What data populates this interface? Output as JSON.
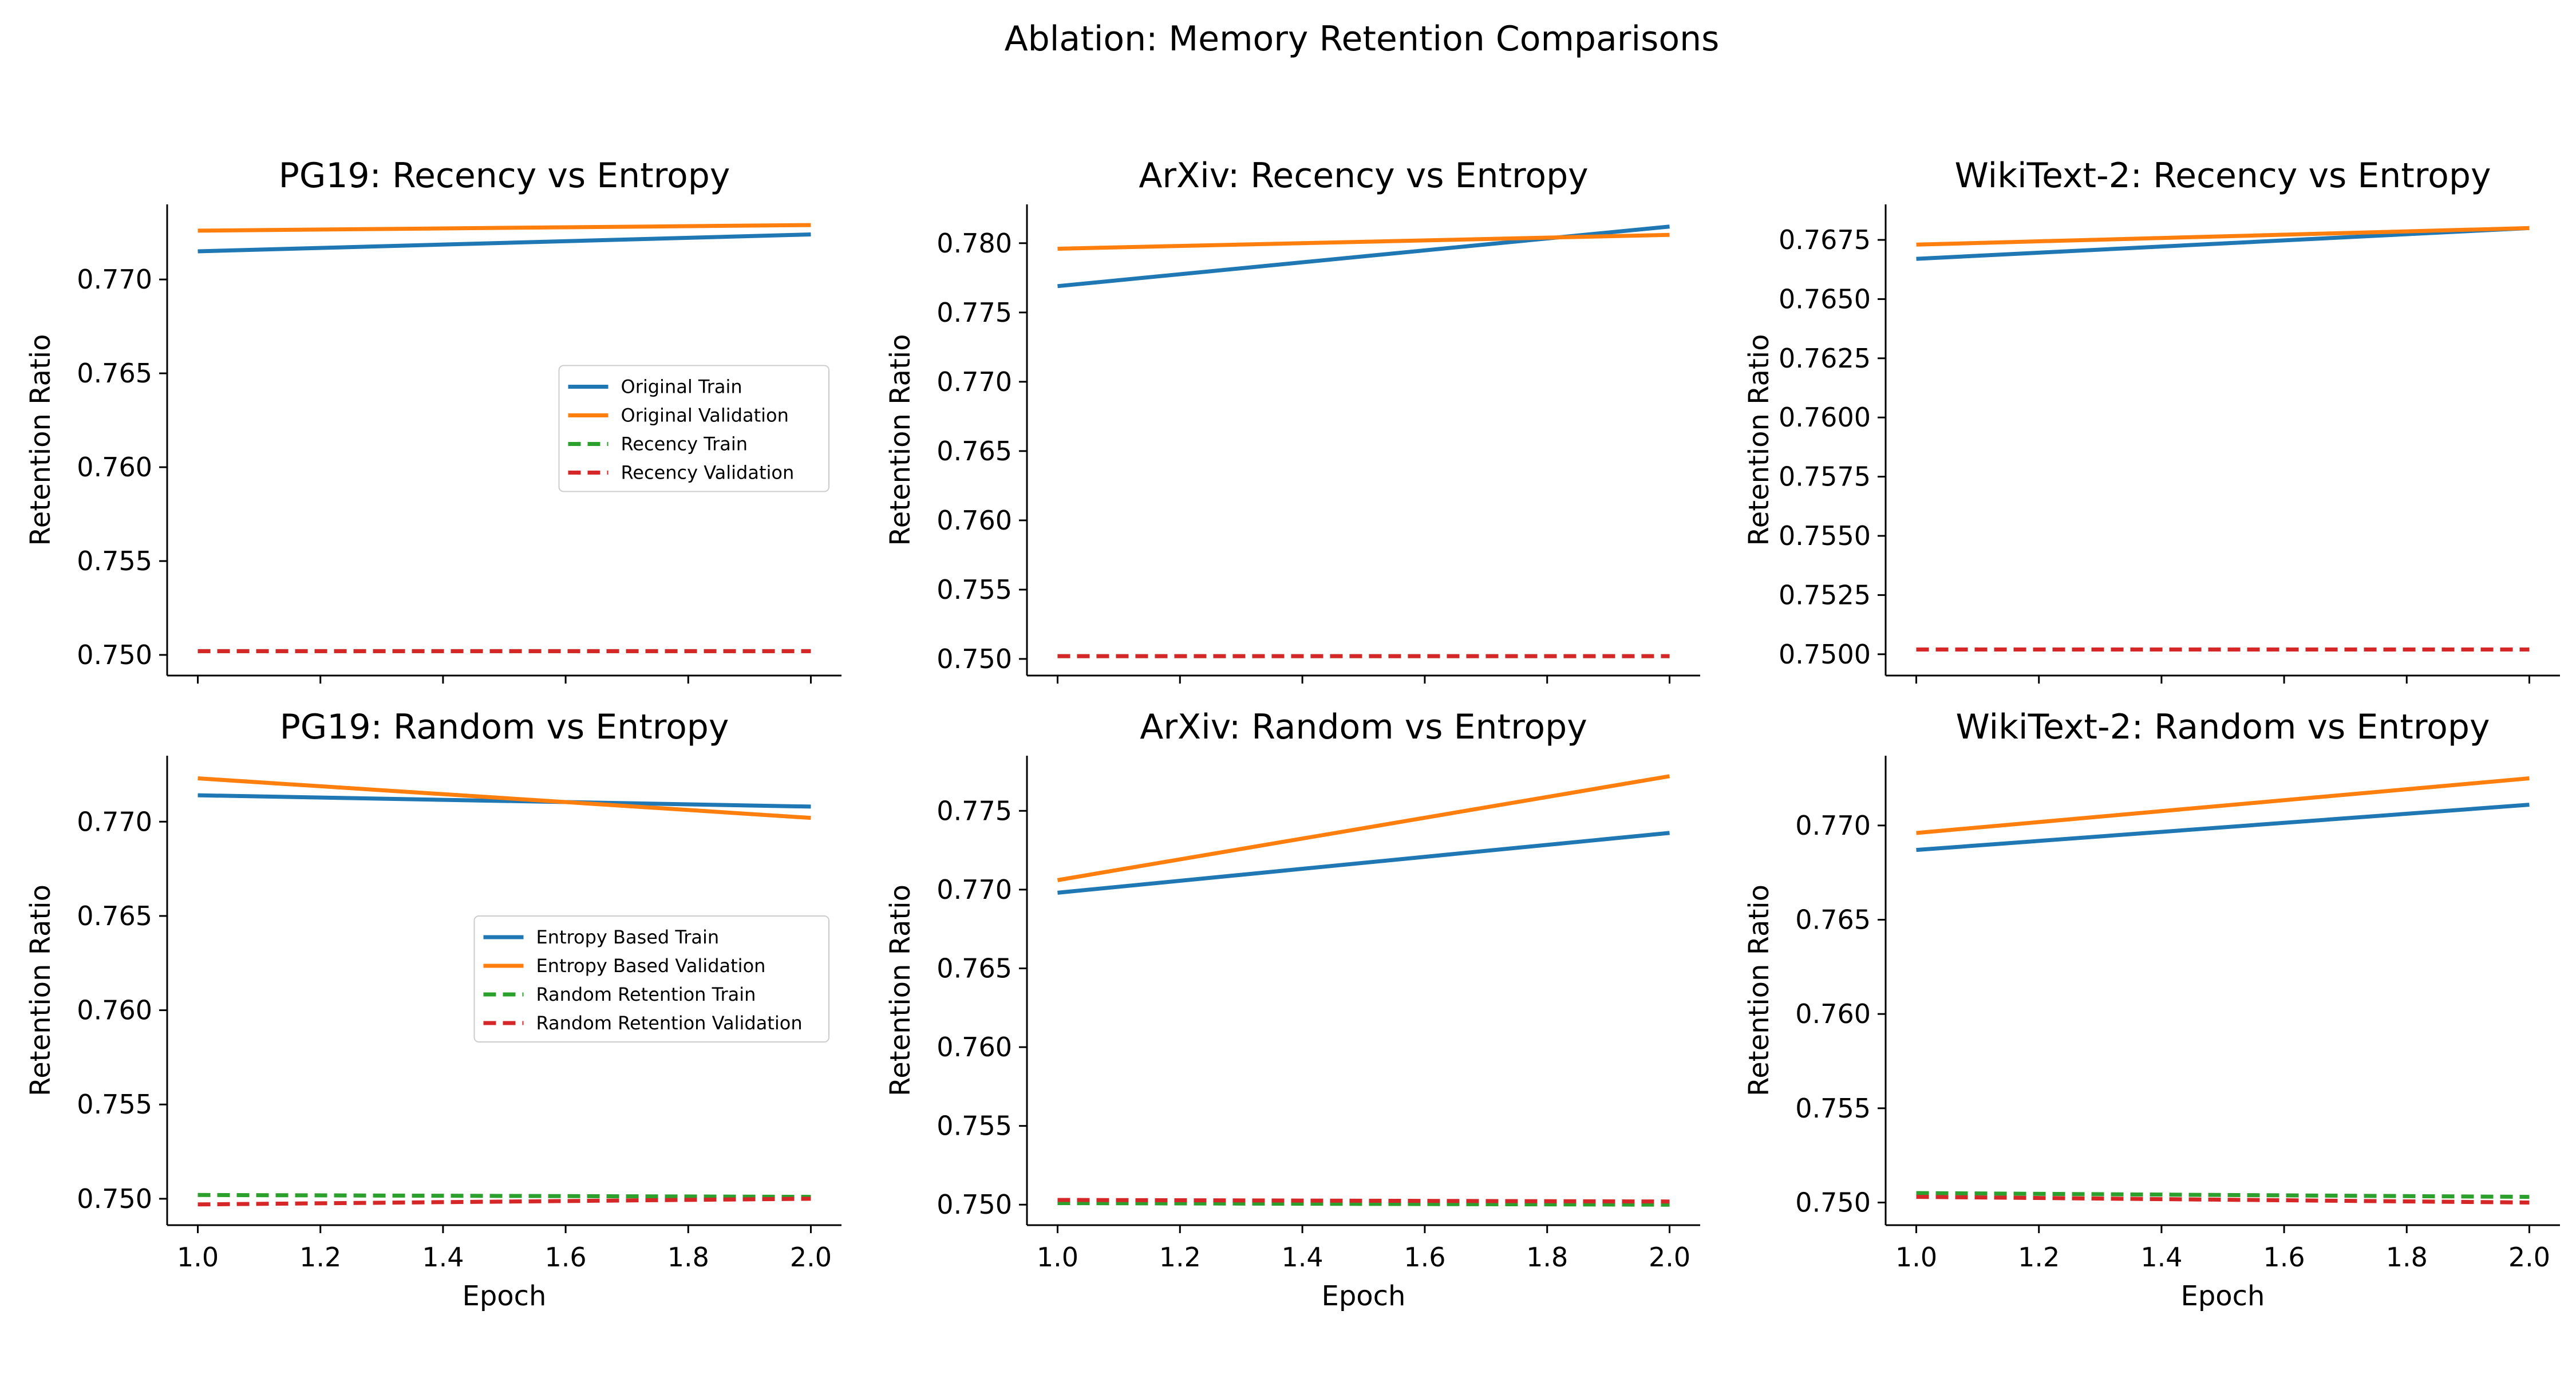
{
  "title": "Ablation: Memory Retention Comparisons",
  "colors": {
    "blue": "#1f77b4",
    "orange": "#ff7f0e",
    "green": "#2ca02c",
    "red": "#d62728",
    "axis": "#000000",
    "background": "#ffffff"
  },
  "chart_data": [
    {
      "type": "line",
      "title": "PG19: Recency vs Entropy",
      "xlabel": "",
      "ylabel": "Retention Ratio",
      "x": [
        1.0,
        2.0
      ],
      "xlim": [
        0.95,
        2.05
      ],
      "ylim": [
        0.7489,
        0.774
      ],
      "xticks": [
        "1.0",
        "1.2",
        "1.4",
        "1.6",
        "1.8",
        "2.0"
      ],
      "xtick_values": [
        1.0,
        1.2,
        1.4,
        1.6,
        1.8,
        2.0
      ],
      "yticks": [
        "0.750",
        "0.755",
        "0.760",
        "0.765",
        "0.770"
      ],
      "ytick_values": [
        0.75,
        0.755,
        0.76,
        0.765,
        0.77
      ],
      "show_xticklabels": false,
      "legend": "center-right",
      "grid": false,
      "series": [
        {
          "name": "Original Train",
          "color": "blue",
          "dash": false,
          "values": [
            0.7715,
            0.7724
          ]
        },
        {
          "name": "Original Validation",
          "color": "orange",
          "dash": false,
          "values": [
            0.7726,
            0.7729
          ]
        },
        {
          "name": "Recency Train",
          "color": "green",
          "dash": true,
          "values": [
            0.7502,
            0.7502
          ]
        },
        {
          "name": "Recency Validation",
          "color": "red",
          "dash": true,
          "values": [
            0.7502,
            0.7502
          ]
        }
      ]
    },
    {
      "type": "line",
      "title": "ArXiv: Recency vs Entropy",
      "xlabel": "",
      "ylabel": "Retention Ratio",
      "x": [
        1.0,
        2.0
      ],
      "xlim": [
        0.95,
        2.05
      ],
      "ylim": [
        0.7488,
        0.7828
      ],
      "xticks": [
        "1.0",
        "1.2",
        "1.4",
        "1.6",
        "1.8",
        "2.0"
      ],
      "xtick_values": [
        1.0,
        1.2,
        1.4,
        1.6,
        1.8,
        2.0
      ],
      "yticks": [
        "0.750",
        "0.755",
        "0.760",
        "0.765",
        "0.770",
        "0.775",
        "0.780"
      ],
      "ytick_values": [
        0.75,
        0.755,
        0.76,
        0.765,
        0.77,
        0.775,
        0.78
      ],
      "show_xticklabels": false,
      "legend": "none",
      "grid": false,
      "series": [
        {
          "name": "Original Train",
          "color": "blue",
          "dash": false,
          "values": [
            0.7769,
            0.7812
          ]
        },
        {
          "name": "Original Validation",
          "color": "orange",
          "dash": false,
          "values": [
            0.7796,
            0.7806
          ]
        },
        {
          "name": "Recency Train",
          "color": "green",
          "dash": true,
          "values": [
            0.7502,
            0.7502
          ]
        },
        {
          "name": "Recency Validation",
          "color": "red",
          "dash": true,
          "values": [
            0.7502,
            0.7502
          ]
        }
      ]
    },
    {
      "type": "line",
      "title": "WikiText-2: Recency vs Entropy",
      "xlabel": "",
      "ylabel": "Retention Ratio",
      "x": [
        1.0,
        2.0
      ],
      "xlim": [
        0.95,
        2.05
      ],
      "ylim": [
        0.7491,
        0.769
      ],
      "xticks": [
        "1.0",
        "1.2",
        "1.4",
        "1.6",
        "1.8",
        "2.0"
      ],
      "xtick_values": [
        1.0,
        1.2,
        1.4,
        1.6,
        1.8,
        2.0
      ],
      "yticks": [
        "0.7500",
        "0.7525",
        "0.7550",
        "0.7575",
        "0.7600",
        "0.7625",
        "0.7650",
        "0.7675"
      ],
      "ytick_values": [
        0.75,
        0.7525,
        0.755,
        0.7575,
        0.76,
        0.7625,
        0.765,
        0.7675
      ],
      "show_xticklabels": false,
      "legend": "none",
      "grid": false,
      "series": [
        {
          "name": "Original Train",
          "color": "blue",
          "dash": false,
          "values": [
            0.7667,
            0.768
          ]
        },
        {
          "name": "Original Validation",
          "color": "orange",
          "dash": false,
          "values": [
            0.7673,
            0.768
          ]
        },
        {
          "name": "Recency Train",
          "color": "green",
          "dash": true,
          "values": [
            0.7502,
            0.7502
          ]
        },
        {
          "name": "Recency Validation",
          "color": "red",
          "dash": true,
          "values": [
            0.7502,
            0.7502
          ]
        }
      ]
    },
    {
      "type": "line",
      "title": "PG19: Random vs Entropy",
      "xlabel": "Epoch",
      "ylabel": "Retention Ratio",
      "x": [
        1.0,
        2.0
      ],
      "xlim": [
        0.95,
        2.05
      ],
      "ylim": [
        0.7486,
        0.7735
      ],
      "xticks": [
        "1.0",
        "1.2",
        "1.4",
        "1.6",
        "1.8",
        "2.0"
      ],
      "xtick_values": [
        1.0,
        1.2,
        1.4,
        1.6,
        1.8,
        2.0
      ],
      "yticks": [
        "0.750",
        "0.755",
        "0.760",
        "0.765",
        "0.770"
      ],
      "ytick_values": [
        0.75,
        0.755,
        0.76,
        0.765,
        0.77
      ],
      "show_xticklabels": true,
      "legend": "center-right",
      "grid": false,
      "series": [
        {
          "name": "Entropy Based Train",
          "color": "blue",
          "dash": false,
          "values": [
            0.7714,
            0.7708
          ]
        },
        {
          "name": "Entropy Based Validation",
          "color": "orange",
          "dash": false,
          "values": [
            0.7723,
            0.7702
          ]
        },
        {
          "name": "Random Retention Train",
          "color": "green",
          "dash": true,
          "values": [
            0.7502,
            0.7501
          ]
        },
        {
          "name": "Random Retention Validation",
          "color": "red",
          "dash": true,
          "values": [
            0.7497,
            0.75
          ]
        }
      ]
    },
    {
      "type": "line",
      "title": "ArXiv: Random vs Entropy",
      "xlabel": "Epoch",
      "ylabel": "Retention Ratio",
      "x": [
        1.0,
        2.0
      ],
      "xlim": [
        0.95,
        2.05
      ],
      "ylim": [
        0.7487,
        0.7785
      ],
      "xticks": [
        "1.0",
        "1.2",
        "1.4",
        "1.6",
        "1.8",
        "2.0"
      ],
      "xtick_values": [
        1.0,
        1.2,
        1.4,
        1.6,
        1.8,
        2.0
      ],
      "yticks": [
        "0.750",
        "0.755",
        "0.760",
        "0.765",
        "0.770",
        "0.775"
      ],
      "ytick_values": [
        0.75,
        0.755,
        0.76,
        0.765,
        0.77,
        0.775
      ],
      "show_xticklabels": true,
      "legend": "none",
      "grid": false,
      "series": [
        {
          "name": "Entropy Based Train",
          "color": "blue",
          "dash": false,
          "values": [
            0.7698,
            0.7736
          ]
        },
        {
          "name": "Entropy Based Validation",
          "color": "orange",
          "dash": false,
          "values": [
            0.7706,
            0.7772
          ]
        },
        {
          "name": "Random Retention Train",
          "color": "green",
          "dash": true,
          "values": [
            0.7501,
            0.75
          ]
        },
        {
          "name": "Random Retention Validation",
          "color": "red",
          "dash": true,
          "values": [
            0.7503,
            0.7502
          ]
        }
      ]
    },
    {
      "type": "line",
      "title": "WikiText-2: Random vs Entropy",
      "xlabel": "Epoch",
      "ylabel": "Retention Ratio",
      "x": [
        1.0,
        2.0
      ],
      "xlim": [
        0.95,
        2.05
      ],
      "ylim": [
        0.7488,
        0.7737
      ],
      "xticks": [
        "1.0",
        "1.2",
        "1.4",
        "1.6",
        "1.8",
        "2.0"
      ],
      "xtick_values": [
        1.0,
        1.2,
        1.4,
        1.6,
        1.8,
        2.0
      ],
      "yticks": [
        "0.750",
        "0.755",
        "0.760",
        "0.765",
        "0.770"
      ],
      "ytick_values": [
        0.75,
        0.755,
        0.76,
        0.765,
        0.77
      ],
      "show_xticklabels": true,
      "legend": "none",
      "grid": false,
      "series": [
        {
          "name": "Entropy Based Train",
          "color": "blue",
          "dash": false,
          "values": [
            0.7687,
            0.7711
          ]
        },
        {
          "name": "Entropy Based Validation",
          "color": "orange",
          "dash": false,
          "values": [
            0.7696,
            0.7725
          ]
        },
        {
          "name": "Random Retention Train",
          "color": "green",
          "dash": true,
          "values": [
            0.7505,
            0.7503
          ]
        },
        {
          "name": "Random Retention Validation",
          "color": "red",
          "dash": true,
          "values": [
            0.7503,
            0.75
          ]
        }
      ]
    }
  ]
}
